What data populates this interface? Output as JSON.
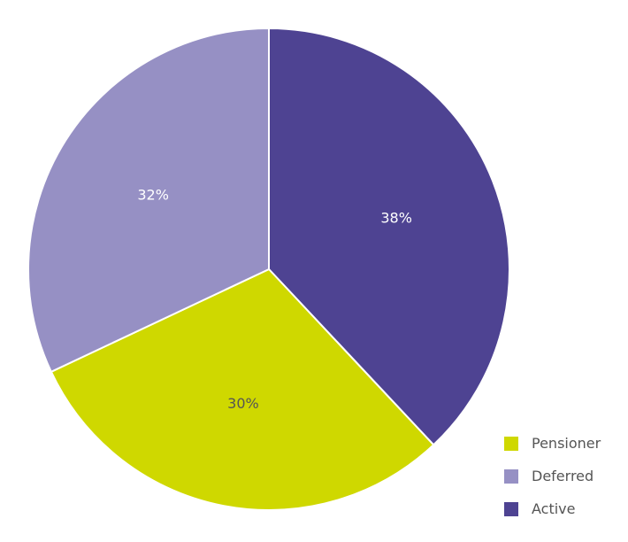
{
  "chart_data": {
    "type": "pie",
    "title": "",
    "slices": [
      {
        "name": "Active",
        "value": 38,
        "label": "38%",
        "color": "#4e4392"
      },
      {
        "name": "Pensioner",
        "value": 30,
        "label": "30%",
        "color": "#cfd800"
      },
      {
        "name": "Deferred",
        "value": 32,
        "label": "32%",
        "color": "#9690c4"
      }
    ],
    "start_angle_deg": 0,
    "direction": "clockwise",
    "label_color_dark_on": [
      "Pensioner"
    ],
    "legend": {
      "placement": "bottom-right",
      "entries": [
        {
          "name": "Pensioner",
          "color": "#cfd800"
        },
        {
          "name": "Deferred",
          "color": "#9690c4"
        },
        {
          "name": "Active",
          "color": "#4e4392"
        }
      ]
    }
  }
}
